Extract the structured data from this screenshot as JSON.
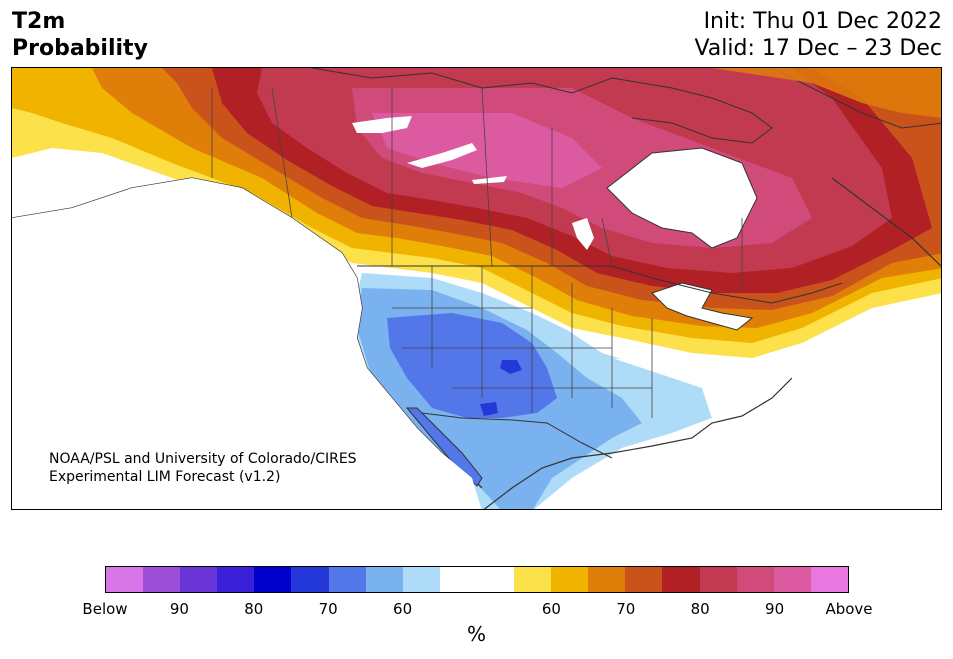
{
  "header": {
    "title_line1": "T2m",
    "title_line2": "Probability",
    "init": "Init: Thu 01 Dec 2022",
    "valid": "Valid: 17 Dec – 23 Dec"
  },
  "credit": {
    "line1": "NOAA/PSL and University of Colorado/CIRES",
    "line2": "Experimental LIM Forecast (v1.2)"
  },
  "colorbar": {
    "colors": [
      "#d876e8",
      "#9b4fd8",
      "#6a35d6",
      "#3a1ed8",
      "#0000cc",
      "#2437d8",
      "#5377e8",
      "#7ab2f0",
      "#aedcf8",
      "#ffffff",
      "#ffffff",
      "#fde14a",
      "#f0b300",
      "#e07e0a",
      "#c9531a",
      "#b02024",
      "#c23a50",
      "#d04a7a",
      "#dc5aa0",
      "#e878e0"
    ],
    "tick_labels": [
      "Below",
      "90",
      "80",
      "70",
      "60",
      "60",
      "70",
      "80",
      "90",
      "Above"
    ],
    "unit": "%"
  },
  "map": {
    "region": "North America",
    "warm_colors": [
      "#fde14a",
      "#f0b300",
      "#e07e0a",
      "#c9531a",
      "#b02024",
      "#c23a50",
      "#d04a7a",
      "#dc5aa0"
    ],
    "cold_colors": [
      "#aedcf8",
      "#7ab2f0",
      "#5377e8",
      "#2437d8"
    ]
  }
}
